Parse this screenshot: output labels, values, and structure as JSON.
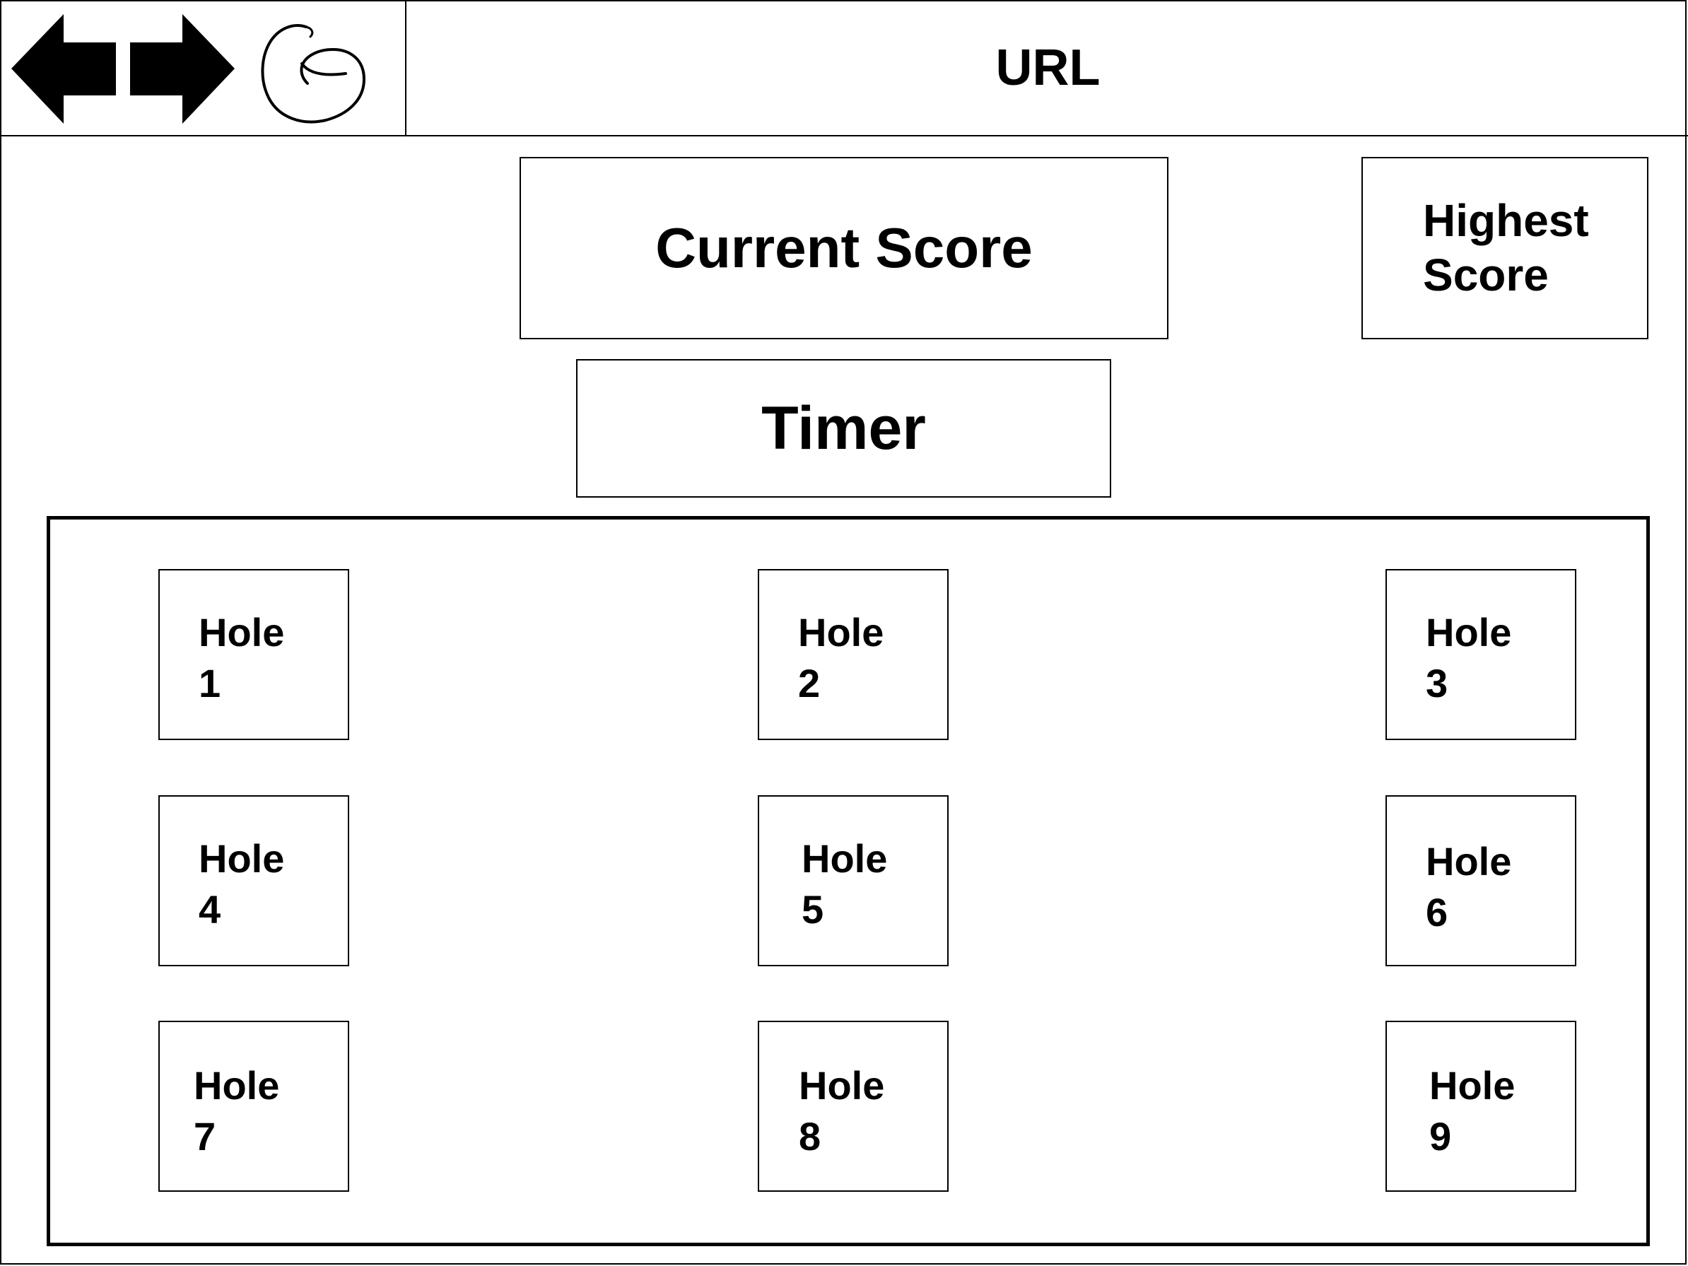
{
  "browser": {
    "url_label": "URL",
    "back_icon": "arrow-left-icon",
    "forward_icon": "arrow-right-icon",
    "refresh_icon": "refresh-icon"
  },
  "scoreboard": {
    "current_score_label": "Current Score",
    "highest_score_label": "Highest Score",
    "timer_label": "Timer"
  },
  "holes": [
    {
      "word": "Hole",
      "number": "1"
    },
    {
      "word": "Hole",
      "number": "2"
    },
    {
      "word": "Hole",
      "number": "3"
    },
    {
      "word": "Hole",
      "number": "4"
    },
    {
      "word": "Hole",
      "number": "5"
    },
    {
      "word": "Hole",
      "number": "6"
    },
    {
      "word": "Hole",
      "number": "7"
    },
    {
      "word": "Hole",
      "number": "8"
    },
    {
      "word": "Hole",
      "number": "9"
    }
  ]
}
